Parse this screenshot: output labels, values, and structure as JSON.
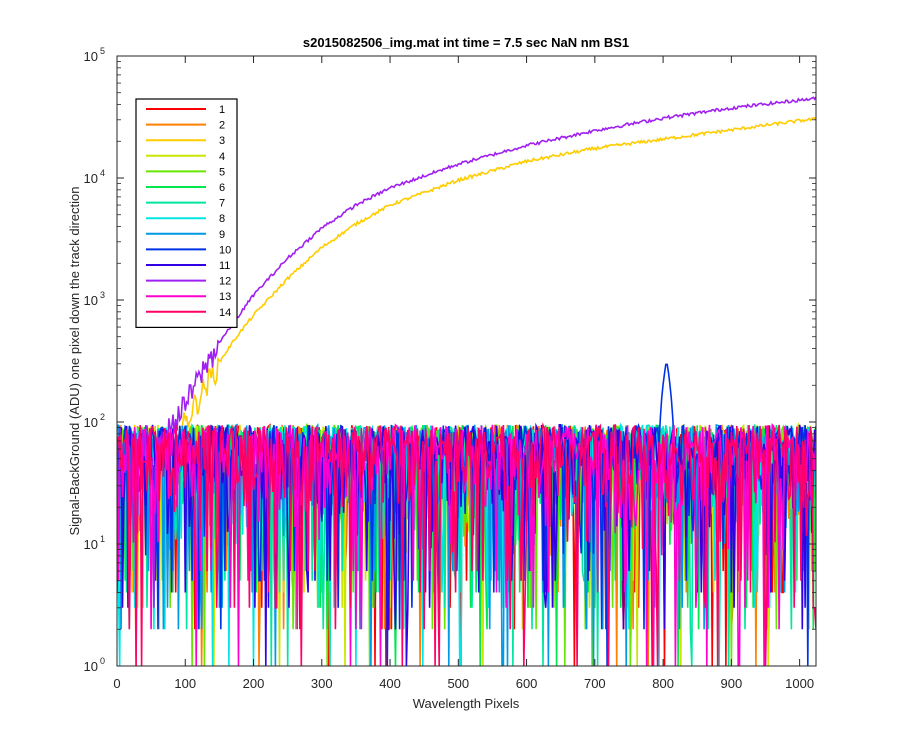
{
  "chart_data": {
    "type": "line",
    "title": "s2015082506_img.mat int time = 7.5 sec  NaN nm BS1",
    "xlabel": "Wavelength Pixels",
    "ylabel": "Signal-BackGround (ADU) one pixel down the track direction",
    "xlim": [
      0,
      1024
    ],
    "ylim": [
      1,
      100000
    ],
    "yscale": "log",
    "x_ticks": [
      0,
      100,
      200,
      300,
      400,
      500,
      600,
      700,
      800,
      900,
      1000
    ],
    "x_tick_labels": [
      "0",
      "100",
      "200",
      "300",
      "400",
      "500",
      "600",
      "700",
      "800",
      "900",
      "1000"
    ],
    "y_ticks": [
      1,
      10,
      100,
      1000,
      10000,
      100000
    ],
    "y_tick_labels": [
      {
        "base": "10",
        "exp": "0"
      },
      {
        "base": "10",
        "exp": "1"
      },
      {
        "base": "10",
        "exp": "2"
      },
      {
        "base": "10",
        "exp": "3"
      },
      {
        "base": "10",
        "exp": "4"
      },
      {
        "base": "10",
        "exp": "5"
      }
    ],
    "grid": false,
    "legend_position": "top-left",
    "noise_level": {
      "typical": 40,
      "max": 95
    },
    "series": [
      {
        "name": "1",
        "color": "#ff0000",
        "kind": "noise"
      },
      {
        "name": "2",
        "color": "#ff7f00",
        "kind": "noise"
      },
      {
        "name": "3",
        "color": "#ffcc00",
        "kind": "signal",
        "x": [
          55,
          75,
          100,
          125,
          150,
          175,
          200,
          250,
          300,
          350,
          400,
          500,
          600,
          700,
          800,
          900,
          1000,
          1024
        ],
        "y": [
          40,
          65,
          100,
          180,
          310,
          500,
          750,
          1500,
          2700,
          4200,
          6000,
          9600,
          13700,
          17500,
          20800,
          24800,
          29500,
          30500
        ]
      },
      {
        "name": "4",
        "color": "#c8e600",
        "kind": "noise"
      },
      {
        "name": "5",
        "color": "#66e600",
        "kind": "noise"
      },
      {
        "name": "6",
        "color": "#00e64d",
        "kind": "noise"
      },
      {
        "name": "7",
        "color": "#00e6a0",
        "kind": "noise"
      },
      {
        "name": "8",
        "color": "#00e6e6",
        "kind": "noise"
      },
      {
        "name": "9",
        "color": "#0099e6",
        "kind": "noise"
      },
      {
        "name": "10",
        "color": "#0033e6",
        "kind": "noise",
        "peak": {
          "x": 805,
          "y": 280
        }
      },
      {
        "name": "11",
        "color": "#3300e6",
        "kind": "noise"
      },
      {
        "name": "12",
        "color": "#a020f0",
        "kind": "signal",
        "x": [
          55,
          75,
          100,
          125,
          150,
          175,
          200,
          250,
          300,
          350,
          400,
          500,
          600,
          700,
          800,
          900,
          1000,
          1024
        ],
        "y": [
          50,
          85,
          140,
          260,
          450,
          700,
          1100,
          2200,
          3900,
          6000,
          8300,
          13000,
          18500,
          24500,
          31000,
          37500,
          43500,
          45000
        ]
      },
      {
        "name": "13",
        "color": "#ff00cc",
        "kind": "noise"
      },
      {
        "name": "14",
        "color": "#ff0066",
        "kind": "noise"
      }
    ]
  }
}
